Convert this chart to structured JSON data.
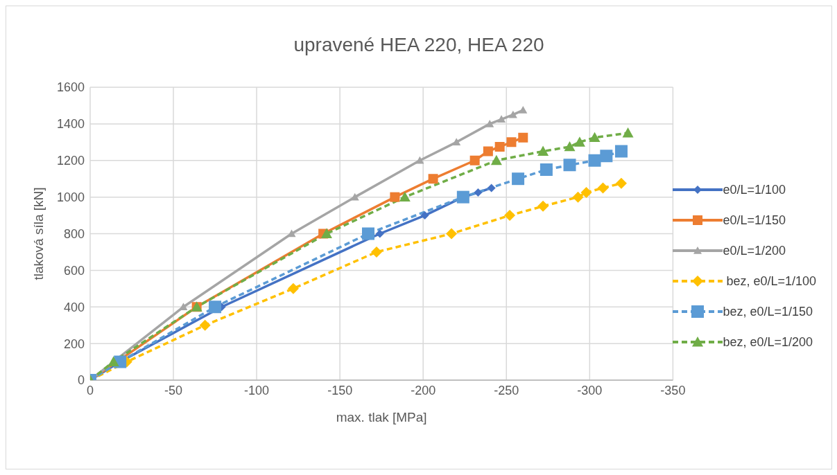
{
  "chart_data": {
    "type": "line",
    "title": "upravené HEA 220, HEA 220",
    "xlabel": "max. tlak [MPa]",
    "ylabel": "tlaková síla [kN]",
    "xlim": [
      0,
      -350
    ],
    "xticks": [
      0,
      -50,
      -100,
      -150,
      -200,
      -250,
      -300,
      -350
    ],
    "ylim": [
      0,
      1600
    ],
    "yticks": [
      0,
      200,
      400,
      600,
      800,
      1000,
      1200,
      1400,
      1600
    ],
    "grid": true,
    "legend": "right",
    "series": [
      {
        "name": "e0/L=1/100",
        "color": "#4472c4",
        "marker": "diamond",
        "line_style": "solid",
        "x": [
          0,
          -18,
          -79,
          -174,
          -201,
          -224,
          -233,
          -241
        ],
        "values": [
          0,
          100,
          400,
          800,
          900,
          1000,
          1025,
          1050
        ]
      },
      {
        "name": "e0/L=1/150",
        "color": "#ed7d31",
        "marker": "square",
        "line_style": "solid",
        "x": [
          0,
          -15,
          -64,
          -140,
          -183,
          -206,
          -231,
          -239,
          -246,
          -253,
          -260
        ],
        "values": [
          0,
          null,
          400,
          800,
          1000,
          1100,
          1200,
          1250,
          1275,
          1300,
          1325
        ]
      },
      {
        "name": "e0/L=1/200",
        "color": "#a5a5a5",
        "marker": "triangle",
        "line_style": "solid",
        "x": [
          0,
          -15,
          -56,
          -121,
          -159,
          -198,
          -220,
          -240,
          -247,
          -254,
          -260
        ],
        "values": [
          0,
          null,
          400,
          800,
          1000,
          1200,
          1300,
          1400,
          1425,
          1450,
          1475
        ]
      },
      {
        "name": " bez, e0/L=1/100",
        "color": "#ffc000",
        "marker": "diamond",
        "line_style": "dashed",
        "x": [
          0,
          -22,
          -69,
          -122,
          -172,
          -217,
          -252,
          -272,
          -293,
          -298,
          -308,
          -319
        ],
        "values": [
          0,
          100,
          300,
          500,
          700,
          800,
          900,
          950,
          1000,
          1025,
          1050,
          1075
        ]
      },
      {
        "name": "bez, e0/L=1/150",
        "color": "#5b9bd5",
        "marker": "square",
        "line_style": "dashed",
        "x": [
          0,
          -18,
          -75,
          -167,
          -224,
          -257,
          -274,
          -288,
          -303,
          -310,
          -319
        ],
        "values": [
          0,
          100,
          400,
          800,
          1000,
          1100,
          1150,
          1175,
          1200,
          1225,
          1250
        ]
      },
      {
        "name": "bez, e0/L=1/200",
        "color": "#70ad47",
        "marker": "triangle",
        "line_style": "dashed",
        "x": [
          0,
          -14,
          -64,
          -142,
          -189,
          -244,
          -272,
          -288,
          -294,
          -303,
          -323
        ],
        "values": [
          0,
          100,
          400,
          800,
          1000,
          1200,
          1250,
          1275,
          1300,
          1325,
          1350
        ]
      }
    ]
  }
}
